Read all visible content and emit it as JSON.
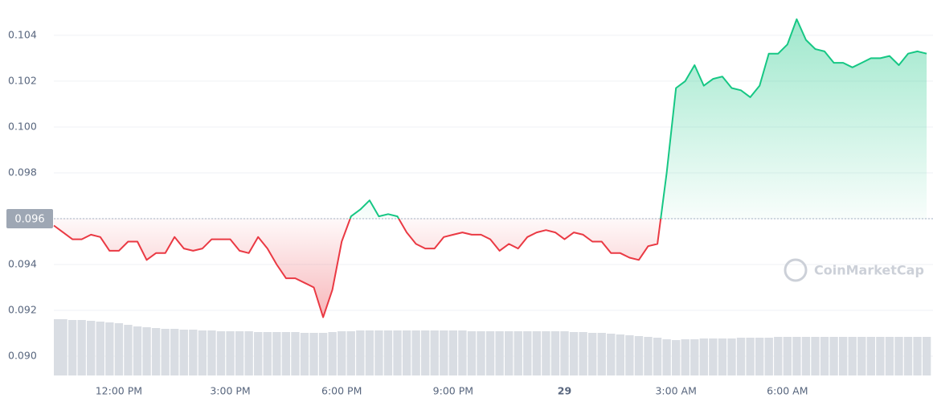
{
  "chart_data": {
    "type": "line",
    "x": [
      10.25,
      10.5,
      10.75,
      11,
      11.25,
      11.5,
      11.75,
      12,
      12.25,
      12.5,
      12.75,
      13,
      13.25,
      13.5,
      13.75,
      14,
      14.25,
      14.5,
      14.75,
      15,
      15.25,
      15.5,
      15.75,
      16,
      16.25,
      16.5,
      16.75,
      17,
      17.25,
      17.5,
      17.75,
      18,
      18.25,
      18.5,
      18.75,
      19,
      19.25,
      19.5,
      19.75,
      20,
      20.25,
      20.5,
      20.75,
      21,
      21.25,
      21.5,
      21.75,
      22,
      22.25,
      22.5,
      22.75,
      23,
      23.25,
      23.5,
      23.75,
      24,
      24.25,
      24.5,
      24.75,
      25,
      25.25,
      25.5,
      25.75,
      26,
      26.25,
      26.5,
      26.75,
      27,
      27.25,
      27.5,
      27.75,
      28,
      28.25,
      28.5,
      28.75,
      29,
      29.25,
      29.5,
      29.75,
      30,
      30.25,
      30.5,
      30.75,
      31,
      31.25,
      31.5,
      31.75,
      32,
      32.25,
      32.5,
      32.75,
      33,
      33.25,
      33.5,
      33.75
    ],
    "series": [
      {
        "values": [
          0.0957,
          0.0954,
          0.0951,
          0.0951,
          0.0953,
          0.0952,
          0.0946,
          0.0946,
          0.095,
          0.095,
          0.0942,
          0.0945,
          0.0945,
          0.0952,
          0.0947,
          0.0946,
          0.0947,
          0.0951,
          0.0951,
          0.0951,
          0.0946,
          0.0945,
          0.0952,
          0.0947,
          0.094,
          0.0934,
          0.0934,
          0.0932,
          0.093,
          0.0917,
          0.0929,
          0.095,
          0.0961,
          0.0964,
          0.0968,
          0.0961,
          0.0962,
          0.0961,
          0.0954,
          0.0949,
          0.0947,
          0.0947,
          0.0952,
          0.0953,
          0.0954,
          0.0953,
          0.0953,
          0.0951,
          0.0946,
          0.0949,
          0.0947,
          0.0952,
          0.0954,
          0.0955,
          0.0954,
          0.0951,
          0.0954,
          0.0953,
          0.095,
          0.095,
          0.0945,
          0.0945,
          0.0943,
          0.0942,
          0.0948,
          0.0949,
          0.098,
          0.1017,
          0.102,
          0.1027,
          0.1018,
          0.1021,
          0.1022,
          0.1017,
          0.1016,
          0.1013,
          0.1018,
          0.1032,
          0.1032,
          0.1036,
          0.1047,
          0.1038,
          0.1034,
          0.1033,
          0.1028,
          0.1028,
          0.1026,
          0.1028,
          0.103,
          0.103,
          0.1031,
          0.1027,
          0.1032,
          0.1033,
          0.1032
        ],
        "up_color": "#16c784",
        "down_color": "#ea3943"
      }
    ],
    "volume": {
      "color": "#d9dde3",
      "values": [
        70,
        70,
        69,
        69,
        68,
        67,
        66,
        65,
        63,
        61,
        60,
        59,
        58,
        58,
        57,
        57,
        56,
        56,
        55,
        55,
        55,
        55,
        54,
        54,
        54,
        54,
        54,
        53,
        53,
        53,
        54,
        55,
        55,
        56,
        56,
        56,
        56,
        56,
        56,
        56,
        56,
        56,
        56,
        56,
        56,
        55,
        55,
        55,
        55,
        55,
        55,
        55,
        55,
        55,
        55,
        55,
        54,
        54,
        53,
        53,
        52,
        51,
        50,
        49,
        48,
        47,
        45,
        44,
        45,
        45,
        46,
        46,
        46,
        46,
        47,
        47,
        47,
        47,
        48,
        48,
        48,
        48,
        48,
        48,
        48,
        48,
        48,
        48,
        48,
        48,
        48,
        48,
        48,
        48,
        48
      ]
    },
    "reference": {
      "value": 0.096,
      "label": "0.096"
    },
    "xlim": [
      10.25,
      33.92
    ],
    "xticks": [
      {
        "value": 12,
        "label": "12:00 PM"
      },
      {
        "value": 15,
        "label": "3:00 PM"
      },
      {
        "value": 18,
        "label": "6:00 PM"
      },
      {
        "value": 21,
        "label": "9:00 PM"
      },
      {
        "value": 24,
        "label": "29"
      },
      {
        "value": 27,
        "label": "3:00 AM"
      },
      {
        "value": 30,
        "label": "6:00 AM"
      }
    ],
    "ylim": [
      0.08916,
      0.10554
    ],
    "yticks": [
      {
        "value": 0.09,
        "label": "0.090"
      },
      0.092,
      0.094,
      0.096,
      0.098,
      {
        "value": 0.1,
        "label": "0.100"
      },
      0.102,
      0.104
    ],
    "grid": true,
    "watermark": "CoinMarketCap"
  }
}
